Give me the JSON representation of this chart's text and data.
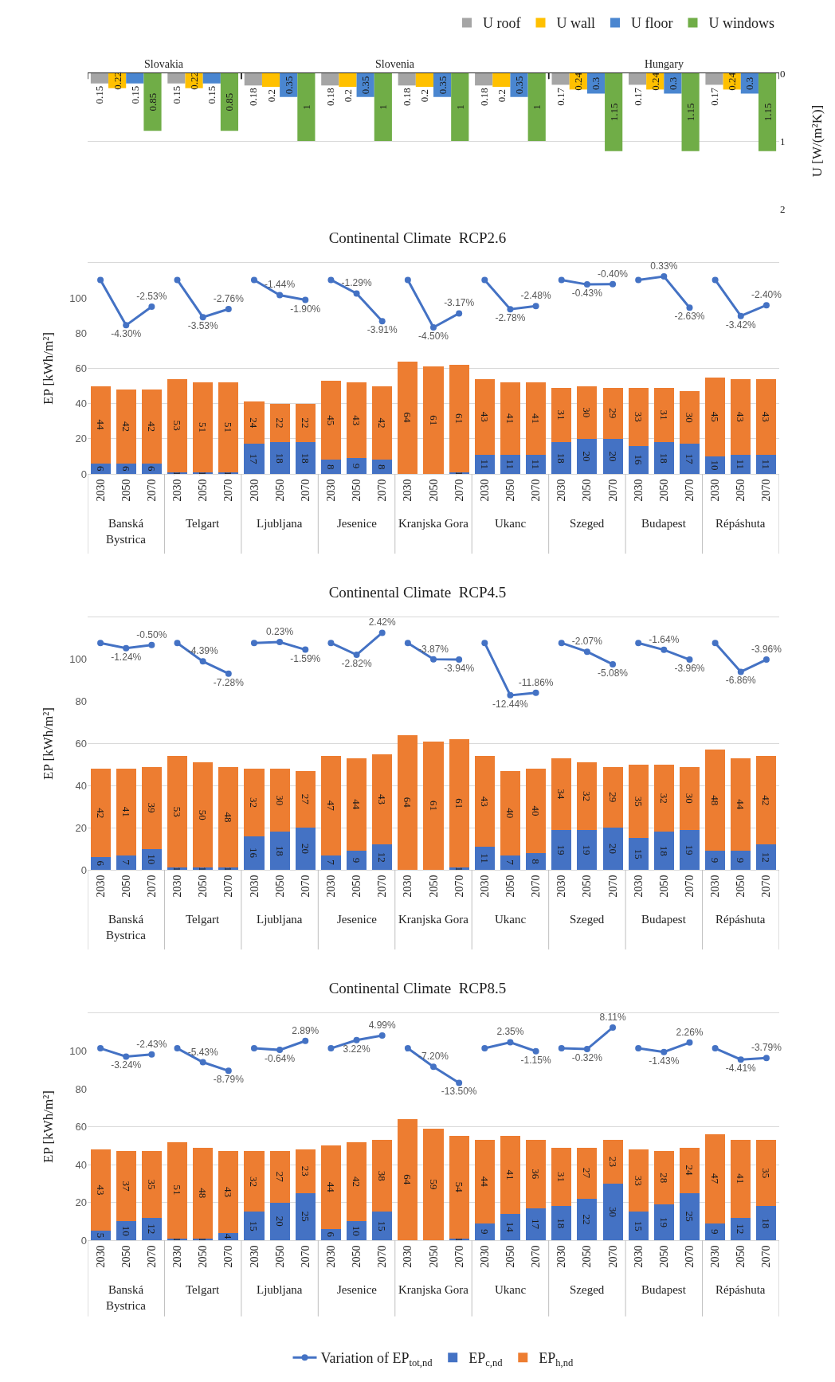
{
  "chart_data": [
    {
      "type": "bar",
      "categories": [
        null,
        null,
        null,
        null,
        null,
        null,
        null,
        null,
        null
      ],
      "series": [
        {
          "name": "U roof",
          "color": "#a5a5a5",
          "values": [
            0.15,
            0.15,
            0.18,
            0.18,
            0.18,
            0.18,
            0.17,
            0.17,
            0.17
          ]
        },
        {
          "name": "U wall",
          "color": "#ffc000",
          "values": [
            0.22,
            0.22,
            0.2,
            0.2,
            0.2,
            0.2,
            0.24,
            0.24,
            0.24
          ]
        },
        {
          "name": "U floor",
          "color": "#4a86d0",
          "values": [
            0.15,
            0.15,
            0.35,
            0.35,
            0.35,
            0.35,
            0.3,
            0.3,
            0.3
          ]
        },
        {
          "name": "U windows",
          "color": "#70ad47",
          "values": [
            0.85,
            0.85,
            1,
            1,
            1,
            1,
            1.15,
            1.15,
            1.15
          ]
        }
      ],
      "ylabel": "U [W/(m²K)]",
      "ylim": [
        2,
        0
      ],
      "yticks": [
        0,
        1,
        2
      ],
      "grid": "y",
      "legend": "top right",
      "data_labels": true,
      "annotations": [
        "Slovakia",
        "Slovenia",
        "Hungary"
      ]
    },
    {
      "type": "bar",
      "title": "Continental Climate  RCP2.6",
      "ylabel": "EP [kWh/m²]",
      "stacked": true,
      "grid": "y",
      "marker": "circle",
      "line_style": "solid",
      "categories": [
        "2030",
        "2050",
        "2070",
        "2030",
        "2050",
        "2070",
        "2030",
        "2050",
        "2070",
        "2030",
        "2050",
        "2070",
        "2030",
        "2050",
        "2070",
        "2030",
        "2050",
        "2070",
        "2030",
        "2050",
        "2070",
        "2030",
        "2050",
        "2070",
        "2030",
        "2050",
        "2070"
      ],
      "annotations": [
        "Banská Bystrica",
        "Telgart",
        "Ljubljana",
        "Jesenice",
        "Kranjska Gora",
        "Ukanc",
        "Szeged",
        "Budapest",
        "Répáshuta"
      ],
      "ylim": [
        0,
        120
      ],
      "yticks": [
        0,
        20,
        40,
        60,
        80,
        100
      ],
      "series": [
        {
          "color": "#4472c4",
          "values": [
            6,
            6,
            6,
            1,
            1,
            1,
            17,
            18,
            18,
            8,
            9,
            8,
            0,
            0,
            1,
            11,
            11,
            11,
            18,
            20,
            20,
            16,
            18,
            17,
            10,
            11,
            11
          ],
          "value_labels": [
            "6",
            "6",
            "6",
            "1",
            "1",
            "1",
            "17",
            "18",
            "18",
            "8",
            "9",
            "8",
            null,
            null,
            "1",
            "11",
            "11",
            "11",
            "18",
            "20",
            "20",
            "16",
            "18",
            "17",
            "10",
            "11",
            "11"
          ]
        },
        {
          "color": "#ed7d31",
          "values": [
            44,
            42,
            42,
            53,
            51,
            51,
            24,
            22,
            22,
            45,
            43,
            42,
            64,
            61,
            61,
            43,
            41,
            41,
            31,
            30,
            29,
            33,
            31,
            30,
            45,
            43,
            43
          ],
          "value_labels": [
            "44",
            "42",
            "42",
            "53",
            "51",
            "51",
            "24",
            "22",
            "22",
            "45",
            "43",
            "42",
            "64",
            "61",
            "61",
            "43",
            "41",
            "41",
            "31",
            "30",
            "29",
            "33",
            "31",
            "30",
            "45",
            "43",
            "43"
          ]
        },
        {
          "type": "line",
          "axis": "y2",
          "color": "#4472c4",
          "values": [
            0,
            -4.3,
            -2.53,
            0,
            -3.53,
            -2.76,
            0,
            -1.44,
            -1.9,
            0,
            -1.29,
            -3.91,
            0,
            -4.5,
            -3.17,
            0,
            -2.78,
            -2.48,
            0,
            -0.43,
            -0.4,
            0,
            0.33,
            -2.63,
            0,
            -3.42,
            -2.4
          ],
          "value_labels": [
            null,
            "-4.30%",
            "-2.53%",
            null,
            "-3.53%",
            "-2.76%",
            null,
            "-1.44%",
            "-1.90%",
            null,
            "-1.29%",
            "-3.91%",
            null,
            "-4.50%",
            "-3.17%",
            null,
            "-2.78%",
            "-2.48%",
            null,
            "-0.43%",
            "-0.40%",
            null,
            "0.33%",
            "-2.63%",
            null,
            "-3.42%",
            "-2.40%"
          ]
        }
      ]
    },
    {
      "type": "bar",
      "title": "Continental Climate  RCP4.5",
      "ylabel": "EP [kWh/m²]",
      "stacked": true,
      "grid": "y",
      "marker": "circle",
      "line_style": "solid",
      "categories": [
        "2030",
        "2050",
        "2070",
        "2030",
        "2050",
        "2070",
        "2030",
        "2050",
        "2070",
        "2030",
        "2050",
        "2070",
        "2030",
        "2050",
        "2070",
        "2030",
        "2050",
        "2070",
        "2030",
        "2050",
        "2070",
        "2030",
        "2050",
        "2070",
        "2030",
        "2050",
        "2070"
      ],
      "annotations": [
        "Banská Bystrica",
        "Telgart",
        "Ljubljana",
        "Jesenice",
        "Kranjska Gora",
        "Ukanc",
        "Szeged",
        "Budapest",
        "Répáshuta"
      ],
      "ylim": [
        0,
        120
      ],
      "yticks": [
        0,
        20,
        40,
        60,
        80,
        100
      ],
      "series": [
        {
          "color": "#4472c4",
          "values": [
            6,
            7,
            10,
            1,
            1,
            1,
            16,
            18,
            20,
            7,
            9,
            12,
            0,
            0,
            1,
            11,
            7,
            8,
            19,
            19,
            20,
            15,
            18,
            19,
            9,
            9,
            12
          ],
          "value_labels": [
            "6",
            "7",
            "10",
            "1",
            "1",
            "1",
            "16",
            "18",
            "20",
            "7",
            "9",
            "12",
            null,
            null,
            "1",
            "11",
            "7",
            "8",
            "19",
            "19",
            "20",
            "15",
            "18",
            "19",
            "9",
            "9",
            "12"
          ]
        },
        {
          "color": "#ed7d31",
          "values": [
            42,
            41,
            39,
            53,
            50,
            48,
            32,
            30,
            27,
            47,
            44,
            43,
            64,
            61,
            61,
            43,
            40,
            40,
            34,
            32,
            29,
            35,
            32,
            30,
            48,
            44,
            42
          ],
          "value_labels": [
            "42",
            "41",
            "39",
            "53",
            "50",
            "48",
            "32",
            "30",
            "27",
            "47",
            "44",
            "43",
            "64",
            "61",
            "61",
            "43",
            "40",
            "40",
            "34",
            "32",
            "29",
            "35",
            "32",
            "30",
            "48",
            "44",
            "42"
          ]
        },
        {
          "type": "line",
          "axis": "y2",
          "color": "#4472c4",
          "values": [
            0,
            -1.24,
            -0.5,
            0,
            -4.39,
            -7.28,
            0,
            0.23,
            -1.59,
            0,
            -2.82,
            2.42,
            0,
            -3.87,
            -3.94,
            0,
            -12.44,
            -11.86,
            0,
            -2.07,
            -5.08,
            0,
            -1.64,
            -3.96,
            0,
            -6.86,
            -3.96
          ],
          "value_labels": [
            null,
            "-1.24%",
            "-0.50%",
            null,
            "-4.39%",
            "-7.28%",
            null,
            "0.23%",
            "-1.59%",
            null,
            "-2.82%",
            "2.42%",
            null,
            "-3.87%",
            "-3.94%",
            null,
            "-12.44%",
            "-11.86%",
            null,
            "-2.07%",
            "-5.08%",
            null,
            "-1.64%",
            "-3.96%",
            null,
            "-6.86%",
            "-3.96%"
          ]
        }
      ]
    },
    {
      "type": "bar",
      "title": "Continental Climate  RCP8.5",
      "ylabel": "EP [kWh/m²]",
      "stacked": true,
      "grid": "y",
      "marker": "circle",
      "line_style": "solid",
      "legend": "bottom",
      "categories": [
        "2030",
        "2050",
        "2070",
        "2030",
        "2050",
        "2070",
        "2030",
        "2050",
        "2070",
        "2030",
        "2050",
        "2070",
        "2030",
        "2050",
        "2070",
        "2030",
        "2050",
        "2070",
        "2030",
        "2050",
        "2070",
        "2030",
        "2050",
        "2070",
        "2030",
        "2050",
        "2070"
      ],
      "annotations": [
        "Banská Bystrica",
        "Telgart",
        "Ljubljana",
        "Jesenice",
        "Kranjska Gora",
        "Ukanc",
        "Szeged",
        "Budapest",
        "Répáshuta"
      ],
      "ylim": [
        0,
        120
      ],
      "yticks": [
        0,
        20,
        40,
        60,
        80,
        100
      ],
      "series": [
        {
          "type": "line",
          "axis": "y2",
          "name": "Variation of EP$_{tot,nd}$",
          "color": "#4472c4",
          "values": [
            0,
            -3.24,
            -2.43,
            0,
            -5.43,
            -8.79,
            0,
            -0.64,
            2.89,
            0,
            3.22,
            4.99,
            0,
            -7.2,
            -13.5,
            0,
            2.35,
            -1.15,
            0,
            -0.32,
            8.11,
            0,
            -1.43,
            2.26,
            0,
            -4.41,
            -3.79
          ],
          "value_labels": [
            null,
            "-3.24%",
            "-2.43%",
            null,
            "-5.43%",
            "-8.79%",
            null,
            "-0.64%",
            "2.89%",
            null,
            "3.22%",
            "4.99%",
            null,
            "-7.20%",
            "-13.50%",
            null,
            "2.35%",
            "-1.15%",
            null,
            "-0.32%",
            "8.11%",
            null,
            "-1.43%",
            "2.26%",
            null,
            "-4.41%",
            "-3.79%"
          ]
        },
        {
          "name": "EP$_{c,nd}$",
          "color": "#4472c4",
          "values": [
            5,
            10,
            12,
            1,
            1,
            4,
            15,
            20,
            25,
            6,
            10,
            15,
            0,
            0,
            1,
            9,
            14,
            17,
            18,
            22,
            30,
            15,
            19,
            25,
            9,
            12,
            18
          ],
          "value_labels": [
            "5",
            "10",
            "12",
            "1",
            "1",
            "4",
            "15",
            "20",
            "25",
            "6",
            "10",
            "15",
            null,
            null,
            "1",
            "9",
            "14",
            "17",
            "18",
            "22",
            "30",
            "15",
            "19",
            "25",
            "9",
            "12",
            "18"
          ]
        },
        {
          "name": "EP$_{h,nd}$",
          "color": "#ed7d31",
          "values": [
            43,
            37,
            35,
            51,
            48,
            43,
            32,
            27,
            23,
            44,
            42,
            38,
            64,
            59,
            54,
            44,
            41,
            36,
            31,
            27,
            23,
            33,
            28,
            24,
            47,
            41,
            35
          ],
          "value_labels": [
            "43",
            "37",
            "35",
            "51",
            "48",
            "43",
            "32",
            "27",
            "23",
            "44",
            "42",
            "38",
            "64",
            "59",
            "54",
            "44",
            "41",
            "36",
            "31",
            "27",
            "23",
            "33",
            "28",
            "24",
            "47",
            "41",
            "35"
          ]
        }
      ]
    }
  ]
}
